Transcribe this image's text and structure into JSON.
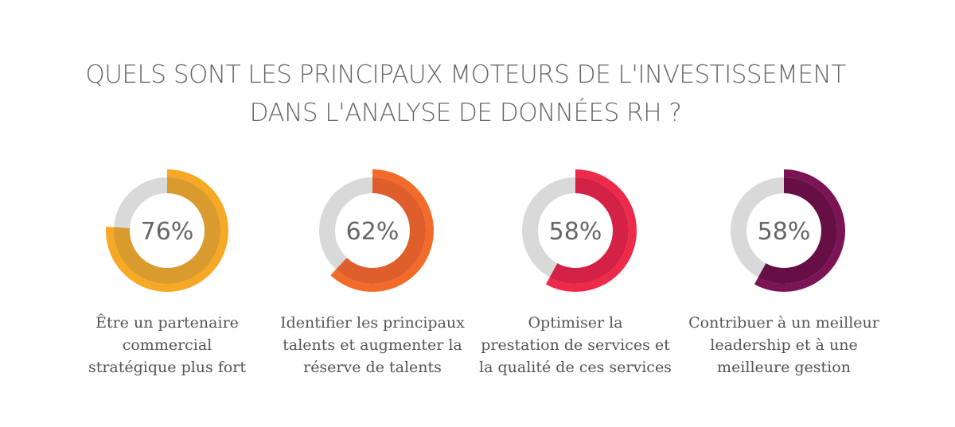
{
  "title": {
    "line1": "QUELS SONT LES PRINCIPAUX MOTEURS DE L'INVESTISSEMENT",
    "line2": "DANS L'ANALYSE DE DONNÉES RH ?"
  },
  "chart_data": [
    {
      "type": "pie",
      "value": 76,
      "value_label": "76%",
      "label_lines": [
        "Être un partenaire",
        "commercial",
        "stratégique plus fort"
      ],
      "color_outer": "#F7A824",
      "color_inner": "#D99A2E"
    },
    {
      "type": "pie",
      "value": 62,
      "value_label": "62%",
      "label_lines": [
        "Identifier les principaux",
        "talents et augmenter la",
        "réserve de talents"
      ],
      "color_outer": "#F26B2A",
      "color_inner": "#DE5F2B"
    },
    {
      "type": "pie",
      "value": 58,
      "value_label": "58%",
      "label_lines": [
        "Optimiser la",
        "prestation de services et",
        "la qualité de ces services"
      ],
      "color_outer": "#EE2A4B",
      "color_inner": "#D42246"
    },
    {
      "type": "pie",
      "value": 58,
      "value_label": "58%",
      "label_lines": [
        "Contribuer à un meilleur",
        "leadership et à une",
        "meilleure gestion"
      ],
      "color_outer": "#7B1454",
      "color_inner": "#660F45"
    }
  ],
  "track_color": "#D9D9D9"
}
